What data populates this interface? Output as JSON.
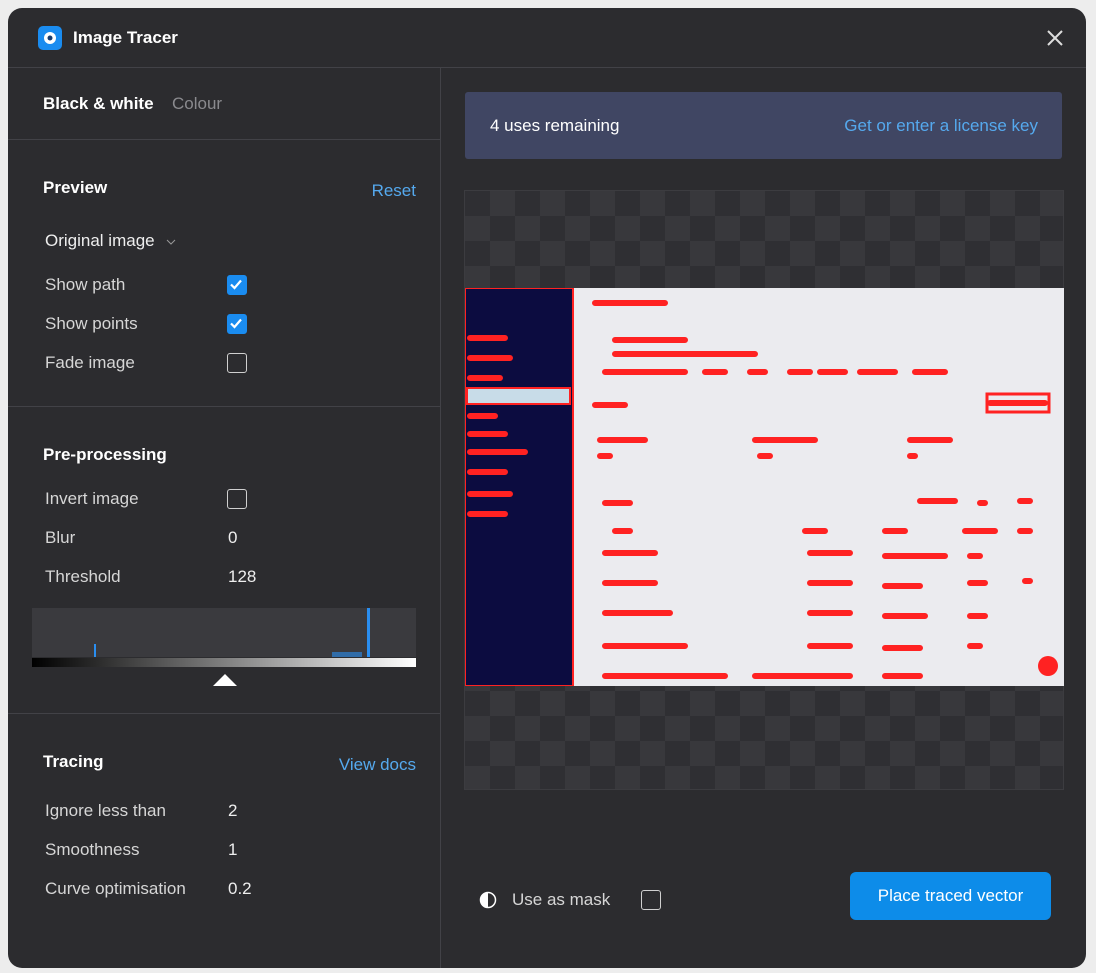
{
  "window": {
    "title": "Image Tracer"
  },
  "tabs": [
    {
      "label": "Black & white",
      "active": true
    },
    {
      "label": "Colour",
      "active": false
    }
  ],
  "preview": {
    "title": "Preview",
    "action": "Reset",
    "mode": "Original image",
    "options": [
      {
        "label": "Show path",
        "checked": true
      },
      {
        "label": "Show points",
        "checked": true
      },
      {
        "label": "Fade image",
        "checked": false
      }
    ]
  },
  "preprocessing": {
    "title": "Pre-processing",
    "options": [
      {
        "label": "Invert image",
        "checked": false
      }
    ],
    "settings": [
      {
        "label": "Blur",
        "value": 0
      },
      {
        "label": "Threshold",
        "value": 128
      }
    ]
  },
  "tracing": {
    "title": "Tracing",
    "action": "View docs",
    "settings": [
      {
        "label": "Ignore less than",
        "value": 2
      },
      {
        "label": "Smoothness",
        "value": 1
      },
      {
        "label": "Curve optimisation",
        "value": 0.2
      }
    ]
  },
  "license": {
    "message": "4 uses remaining",
    "link": "Get or enter a license key"
  },
  "footer": {
    "mask_label": "Use as mask",
    "mask_checked": false,
    "button": "Place traced vector"
  }
}
